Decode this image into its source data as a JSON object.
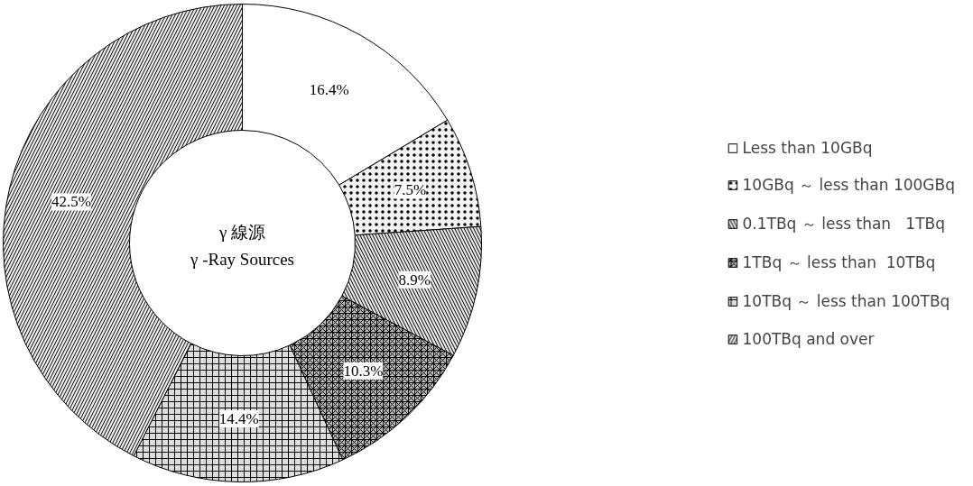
{
  "chart_data": {
    "type": "donut",
    "categories": [
      "Less than 10GBq",
      "10GBq ～ less than 100GBq",
      "0.1TBq ～ less than   1TBq",
      "1TBq ～ less than  10TBq",
      "10TBq ～ less than 100TBq",
      "100TBq and over"
    ],
    "values": [
      16.4,
      7.5,
      8.9,
      10.3,
      14.4,
      42.5
    ],
    "colors": [
      "#ffffff",
      "#f4f4f4",
      "#e6e6e6",
      "#bbbbbb",
      "#dddddd",
      "#eeeeee"
    ],
    "value_labels": [
      "16.4%",
      "7.5%",
      "8.9%",
      "10.3%",
      "14.4%",
      "42.5%"
    ],
    "annotations": [
      "γ 線源",
      "γ -Ray Sources"
    ],
    "legend": "right"
  }
}
